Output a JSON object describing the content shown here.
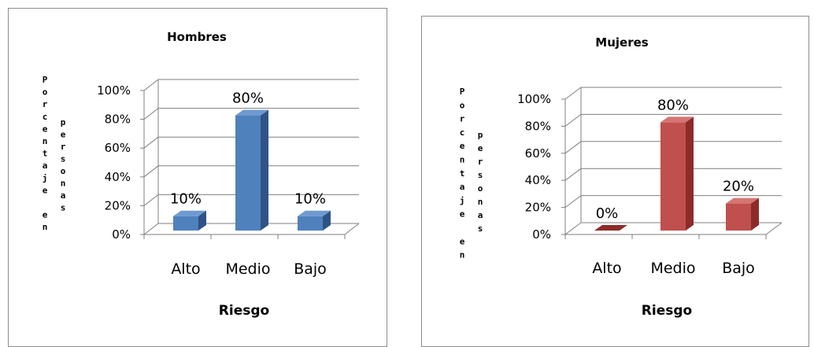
{
  "chart_data": [
    {
      "type": "bar",
      "title": "Hombres",
      "xlabel": "Riesgo",
      "ylabel_parts": [
        "Porcentaje en",
        "personas"
      ],
      "categories": [
        "Alto",
        "Medio",
        "Bajo"
      ],
      "values": [
        10,
        80,
        10
      ],
      "data_labels": [
        "10%",
        "80%",
        "10%"
      ],
      "yticks": [
        "0%",
        "20%",
        "40%",
        "60%",
        "80%",
        "100%"
      ],
      "ylim": [
        0,
        100
      ],
      "grid": true,
      "legend": "none",
      "colors": {
        "front": "#4f81bd",
        "side": "#2f5387",
        "top": "#6f9ad0"
      }
    },
    {
      "type": "bar",
      "title": "Mujeres",
      "xlabel": "Riesgo",
      "ylabel_parts": [
        "Porcentaje en",
        "personas"
      ],
      "categories": [
        "Alto",
        "Medio",
        "Bajo"
      ],
      "values": [
        0,
        80,
        20
      ],
      "data_labels": [
        "0%",
        "80%",
        "20%"
      ],
      "yticks": [
        "0%",
        "20%",
        "40%",
        "60%",
        "80%",
        "100%"
      ],
      "ylim": [
        0,
        100
      ],
      "grid": true,
      "legend": "none",
      "colors": {
        "front": "#c0504d",
        "side": "#8c2c2a",
        "top": "#d47673"
      }
    }
  ]
}
